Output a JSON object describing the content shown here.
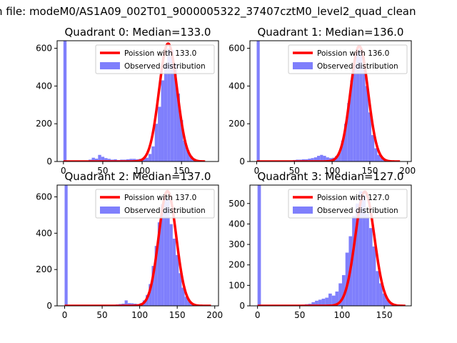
{
  "figure": {
    "suptitle": "n file: modeM0/AS1A09_002T01_9000005322_37407cztM0_level2_quad_clean"
  },
  "colors": {
    "hist": "#7f7ffc",
    "fit": "#ff0000",
    "legend_border": "#cccccc"
  },
  "chart_data": [
    {
      "type": "bar",
      "title": "Quadrant 0: Median=133.0",
      "xlim": [
        -8,
        197
      ],
      "ylim": [
        0,
        640
      ],
      "xticks": [
        0,
        50,
        100,
        150
      ],
      "yticks": [
        0,
        200,
        400,
        600
      ],
      "legend": {
        "placement": "top-right",
        "fit_label": "Poission with 133.0",
        "hist_label": "Observed distribution"
      },
      "bin_width": 4,
      "hist": {
        "x": [
          0,
          32,
          36,
          40,
          44,
          48,
          52,
          56,
          60,
          64,
          68,
          72,
          76,
          80,
          84,
          88,
          92,
          96,
          100,
          104,
          108,
          112,
          116,
          120,
          124,
          128,
          132,
          136,
          140,
          144,
          148,
          152,
          156,
          160,
          164,
          168,
          172
        ],
        "y": [
          640,
          10,
          20,
          15,
          35,
          25,
          18,
          14,
          10,
          12,
          8,
          10,
          10,
          12,
          14,
          14,
          12,
          14,
          16,
          20,
          40,
          80,
          200,
          290,
          430,
          520,
          600,
          590,
          520,
          360,
          220,
          110,
          60,
          30,
          15,
          8,
          5
        ]
      },
      "fit": {
        "mean": 133.0,
        "peak": 625,
        "sigma": 11.5,
        "x_range": [
          0,
          180
        ]
      }
    },
    {
      "type": "bar",
      "title": "Quadrant 1: Median=136.0",
      "xlim": [
        -9,
        205
      ],
      "ylim": [
        0,
        640
      ],
      "xticks": [
        0,
        50,
        100,
        150,
        200
      ],
      "yticks": [
        0,
        200,
        400,
        600
      ],
      "legend": {
        "placement": "top-right",
        "fit_label": "Poission with 136.0",
        "hist_label": "Observed distribution"
      },
      "bin_width": 4,
      "hist": {
        "x": [
          0,
          48,
          52,
          56,
          60,
          64,
          68,
          72,
          76,
          80,
          84,
          88,
          92,
          96,
          100,
          104,
          108,
          112,
          116,
          120,
          124,
          128,
          132,
          136,
          140,
          144,
          148,
          152,
          156,
          160,
          164,
          168,
          172,
          176,
          180,
          184
        ],
        "y": [
          640,
          8,
          10,
          10,
          12,
          12,
          15,
          18,
          22,
          30,
          35,
          30,
          22,
          18,
          20,
          30,
          50,
          110,
          200,
          310,
          430,
          520,
          590,
          600,
          500,
          400,
          260,
          140,
          70,
          35,
          20,
          10,
          6,
          4,
          3,
          2
        ]
      },
      "fit": {
        "mean": 136.0,
        "peak": 612,
        "sigma": 11.7,
        "x_range": [
          0,
          190
        ]
      }
    },
    {
      "type": "bar",
      "title": "Quadrant 2: Median=137.0",
      "xlim": [
        -10,
        205
      ],
      "ylim": [
        0,
        665
      ],
      "xticks": [
        0,
        50,
        100,
        150,
        200
      ],
      "yticks": [
        0,
        200,
        400,
        600
      ],
      "legend": {
        "placement": "top-right",
        "fit_label": "Poission with 137.0",
        "hist_label": "Observed distribution"
      },
      "bin_width": 4,
      "hist": {
        "x": [
          0,
          60,
          64,
          68,
          72,
          76,
          80,
          84,
          88,
          92,
          96,
          100,
          104,
          108,
          112,
          116,
          120,
          124,
          128,
          132,
          136,
          140,
          144,
          148,
          152,
          156,
          160,
          164,
          168,
          172,
          176,
          180,
          184,
          188,
          192
        ],
        "y": [
          665,
          5,
          6,
          8,
          10,
          12,
          30,
          15,
          14,
          12,
          10,
          15,
          30,
          60,
          120,
          220,
          330,
          460,
          560,
          620,
          590,
          450,
          370,
          280,
          180,
          100,
          50,
          25,
          12,
          8,
          5,
          4,
          3,
          2,
          2
        ]
      },
      "fit": {
        "mean": 137.0,
        "peak": 632,
        "sigma": 11.7,
        "x_range": [
          0,
          195
        ]
      }
    },
    {
      "type": "bar",
      "title": "Quadrant 3: Median=127.0",
      "xlim": [
        -9,
        182
      ],
      "ylim": [
        0,
        590
      ],
      "xticks": [
        0,
        50,
        100,
        150
      ],
      "yticks": [
        0,
        100,
        200,
        300,
        400,
        500
      ],
      "legend": {
        "placement": "top-right",
        "fit_label": "Poission with 127.0",
        "hist_label": "Observed distribution"
      },
      "bin_width": 4,
      "hist": {
        "x": [
          0,
          52,
          56,
          60,
          64,
          68,
          72,
          76,
          80,
          84,
          88,
          92,
          96,
          100,
          104,
          108,
          112,
          116,
          120,
          124,
          128,
          132,
          136,
          140,
          144,
          148,
          152,
          156,
          160,
          164,
          168
        ],
        "y": [
          590,
          6,
          8,
          10,
          18,
          25,
          30,
          35,
          40,
          60,
          50,
          70,
          110,
          150,
          260,
          340,
          440,
          500,
          560,
          540,
          450,
          380,
          290,
          170,
          110,
          60,
          30,
          15,
          8,
          5,
          3
        ]
      },
      "fit": {
        "mean": 127.0,
        "peak": 558,
        "sigma": 11.3,
        "x_range": [
          0,
          175
        ]
      }
    }
  ]
}
